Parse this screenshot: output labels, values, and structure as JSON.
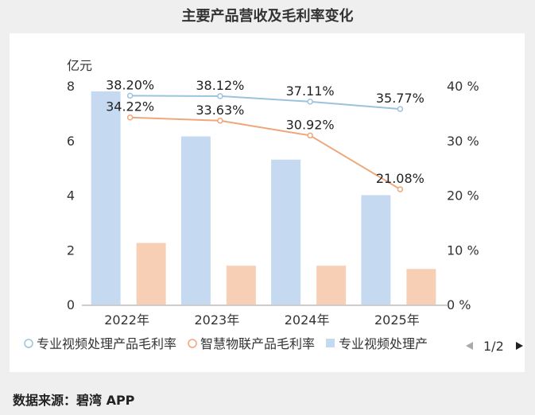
{
  "title": "主要产品营收及毛利率变化",
  "footer": "数据来源：碧湾 APP",
  "chart_data": {
    "type": "bar",
    "title": "主要产品营收及毛利率变化",
    "categories": [
      "2022年",
      "2023年",
      "2024年",
      "2025年"
    ],
    "y_left": {
      "label": "亿元",
      "ticks": [
        "0",
        "2",
        "4",
        "6",
        "8"
      ],
      "range": [
        0,
        8
      ]
    },
    "y_right": {
      "ticks": [
        "0 %",
        "10 %",
        "20 %",
        "30 %",
        "40 %"
      ],
      "range": [
        0,
        40
      ]
    },
    "bars": [
      {
        "name": "专业视频处理产",
        "color": "#c5daf0",
        "values": [
          7.8,
          6.15,
          5.3,
          4.0
        ]
      },
      {
        "color": "#f7cfb4",
        "values": [
          2.25,
          1.42,
          1.42,
          1.3
        ]
      }
    ],
    "lines": [
      {
        "name": "专业视频处理产品毛利率",
        "color": "#9cc3dc",
        "values": [
          38.2,
          38.12,
          37.11,
          35.77
        ],
        "labels": [
          "38.20%",
          "38.12%",
          "37.11%",
          "35.77%"
        ]
      },
      {
        "name": "智慧物联产品毛利率",
        "color": "#efa77a",
        "values": [
          34.22,
          33.63,
          30.92,
          21.08
        ],
        "labels": [
          "34.22%",
          "33.63%",
          "30.92%",
          "21.08%"
        ]
      }
    ],
    "legend": {
      "position": "bottom",
      "page": "1/2"
    },
    "grid": false
  }
}
